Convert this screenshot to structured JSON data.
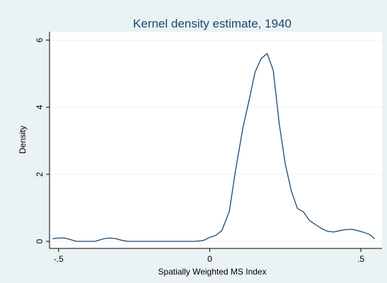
{
  "chart_data": {
    "type": "line",
    "title": "Kernel density estimate, 1940",
    "x_label": "Spatially Weighted MS Index",
    "y_label": "Density",
    "x": [
      -0.52,
      -0.5,
      -0.48,
      -0.44,
      -0.4,
      -0.38,
      -0.35,
      -0.33,
      -0.31,
      -0.29,
      -0.27,
      -0.2,
      -0.1,
      -0.05,
      -0.02,
      0.0,
      0.02,
      0.04,
      0.065,
      0.085,
      0.11,
      0.13,
      0.15,
      0.17,
      0.19,
      0.21,
      0.23,
      0.25,
      0.27,
      0.29,
      0.31,
      0.33,
      0.35,
      0.37,
      0.39,
      0.41,
      0.43,
      0.45,
      0.47,
      0.49,
      0.51,
      0.53,
      0.545
    ],
    "values": [
      0.08,
      0.1,
      0.1,
      0.0,
      0.0,
      0.0,
      0.08,
      0.1,
      0.08,
      0.03,
      0.0,
      0.0,
      0.0,
      0.0,
      0.03,
      0.12,
      0.18,
      0.32,
      0.9,
      2.1,
      3.4,
      4.2,
      5.05,
      5.45,
      5.6,
      5.1,
      3.5,
      2.3,
      1.5,
      0.98,
      0.88,
      0.62,
      0.5,
      0.38,
      0.3,
      0.28,
      0.32,
      0.35,
      0.36,
      0.32,
      0.27,
      0.2,
      0.08
    ],
    "color": "#1a476f",
    "xlim": [
      -0.53,
      0.57
    ],
    "xticks": [
      {
        "value": -0.5,
        "label": "-.5"
      },
      0,
      {
        "value": 0.5,
        "label": ".5"
      }
    ],
    "ylim": [
      -0.21,
      6.25
    ],
    "yticks": [
      0,
      2,
      4,
      6
    ],
    "grid": true
  }
}
